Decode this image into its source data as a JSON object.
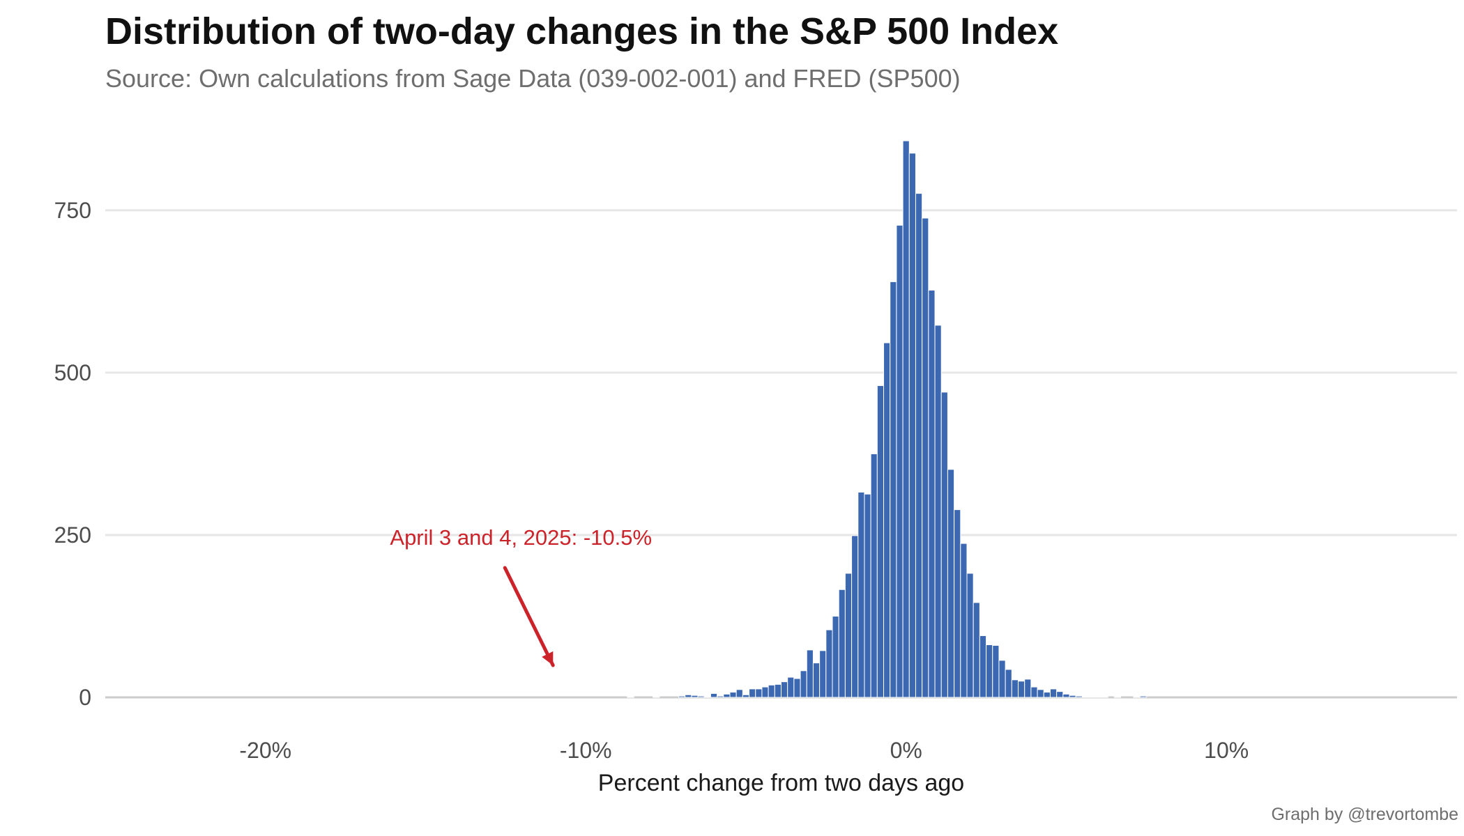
{
  "chart_data": {
    "type": "bar",
    "title": "Distribution of two-day changes in the S&P 500 Index",
    "subtitle": "Source: Own calculations from Sage Data (039-002-001) and FRED (SP500)",
    "caption": "Graph by @trevortombe",
    "xlabel": "Percent change from two days ago",
    "ylabel": "",
    "xlim": [
      -25.0,
      17.2
    ],
    "ylim": [
      0,
      870
    ],
    "x_ticks": [
      {
        "value": -20,
        "label": "-20%"
      },
      {
        "value": -10,
        "label": "-10%"
      },
      {
        "value": 0,
        "label": "0%"
      },
      {
        "value": 10,
        "label": "10%"
      }
    ],
    "y_ticks": [
      {
        "value": 0,
        "label": "0"
      },
      {
        "value": 250,
        "label": "250"
      },
      {
        "value": 500,
        "label": "500"
      },
      {
        "value": 750,
        "label": "750"
      }
    ],
    "grid": true,
    "bin_width": 0.2,
    "bins": [
      {
        "x": -8.6,
        "count": 1
      },
      {
        "x": -7.8,
        "count": 1
      },
      {
        "x": -7.0,
        "count": 2
      },
      {
        "x": -6.8,
        "count": 4
      },
      {
        "x": -6.6,
        "count": 3
      },
      {
        "x": -6.4,
        "count": 2
      },
      {
        "x": -6.2,
        "count": 1
      },
      {
        "x": -6.0,
        "count": 6
      },
      {
        "x": -5.8,
        "count": 2
      },
      {
        "x": -5.6,
        "count": 5
      },
      {
        "x": -5.4,
        "count": 8
      },
      {
        "x": -5.2,
        "count": 12
      },
      {
        "x": -5.0,
        "count": 4
      },
      {
        "x": -4.8,
        "count": 13
      },
      {
        "x": -4.6,
        "count": 13
      },
      {
        "x": -4.4,
        "count": 16
      },
      {
        "x": -4.2,
        "count": 19
      },
      {
        "x": -4.0,
        "count": 20
      },
      {
        "x": -3.8,
        "count": 24
      },
      {
        "x": -3.6,
        "count": 31
      },
      {
        "x": -3.4,
        "count": 29
      },
      {
        "x": -3.2,
        "count": 41
      },
      {
        "x": -3.0,
        "count": 73
      },
      {
        "x": -2.8,
        "count": 53
      },
      {
        "x": -2.6,
        "count": 72
      },
      {
        "x": -2.4,
        "count": 104
      },
      {
        "x": -2.2,
        "count": 125
      },
      {
        "x": -2.0,
        "count": 166
      },
      {
        "x": -1.8,
        "count": 191
      },
      {
        "x": -1.6,
        "count": 249
      },
      {
        "x": -1.4,
        "count": 316
      },
      {
        "x": -1.2,
        "count": 313
      },
      {
        "x": -1.0,
        "count": 375
      },
      {
        "x": -0.8,
        "count": 480
      },
      {
        "x": -0.6,
        "count": 546
      },
      {
        "x": -0.4,
        "count": 640
      },
      {
        "x": -0.2,
        "count": 727
      },
      {
        "x": 0.0,
        "count": 857
      },
      {
        "x": 0.2,
        "count": 838
      },
      {
        "x": 0.4,
        "count": 776
      },
      {
        "x": 0.6,
        "count": 738
      },
      {
        "x": 0.8,
        "count": 627
      },
      {
        "x": 1.0,
        "count": 573
      },
      {
        "x": 1.2,
        "count": 470
      },
      {
        "x": 1.4,
        "count": 351
      },
      {
        "x": 1.6,
        "count": 289
      },
      {
        "x": 1.8,
        "count": 237
      },
      {
        "x": 2.0,
        "count": 191
      },
      {
        "x": 2.2,
        "count": 146
      },
      {
        "x": 2.4,
        "count": 95
      },
      {
        "x": 2.6,
        "count": 81
      },
      {
        "x": 2.8,
        "count": 80
      },
      {
        "x": 3.0,
        "count": 57
      },
      {
        "x": 3.2,
        "count": 43
      },
      {
        "x": 3.4,
        "count": 27
      },
      {
        "x": 3.6,
        "count": 25
      },
      {
        "x": 3.8,
        "count": 28
      },
      {
        "x": 4.0,
        "count": 16
      },
      {
        "x": 4.2,
        "count": 12
      },
      {
        "x": 4.4,
        "count": 8
      },
      {
        "x": 4.6,
        "count": 13
      },
      {
        "x": 4.8,
        "count": 9
      },
      {
        "x": 5.0,
        "count": 5
      },
      {
        "x": 5.2,
        "count": 3
      },
      {
        "x": 5.4,
        "count": 2
      },
      {
        "x": 5.6,
        "count": 1
      },
      {
        "x": 5.8,
        "count": 1
      },
      {
        "x": 6.0,
        "count": 1
      },
      {
        "x": 6.2,
        "count": 1
      },
      {
        "x": 6.6,
        "count": 1
      },
      {
        "x": 7.2,
        "count": 1
      },
      {
        "x": 7.4,
        "count": 2
      }
    ],
    "annotation": {
      "text": "April 3 and 4, 2025: -10.5%",
      "x": -10.5,
      "color": "#cc2229"
    },
    "colors": {
      "bar": "#3c68b1",
      "bar_edge": "#ffffff",
      "grid": "#e6e6e6",
      "baseline": "#cccccc",
      "title": "#111111",
      "subtitle": "#6e6e6e"
    }
  }
}
